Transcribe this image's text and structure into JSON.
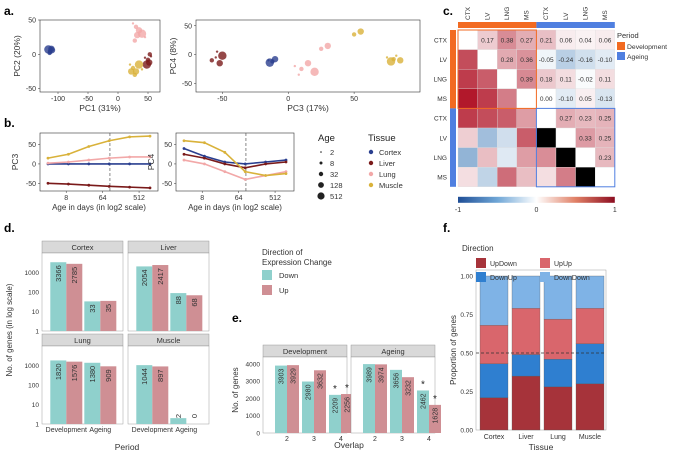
{
  "panels": {
    "a": "a.",
    "b": "b.",
    "c": "c.",
    "d": "d.",
    "e": "e.",
    "f": "f."
  },
  "colors": {
    "cortex": "#2a3f8f",
    "liver": "#7a1a1a",
    "lung": "#f2a8a8",
    "muscle": "#d9b23a",
    "down": "#8fd0cc",
    "up": "#cf8f94",
    "updown": "#a6333a",
    "downup": "#2f7fd0",
    "upup": "#d9666c",
    "downdown": "#7fb3e6",
    "development": "#f26a21",
    "ageing": "#4f7fe0",
    "strip": "#d9d9d9"
  },
  "chart_data": [
    {
      "id": "a1",
      "type": "scatter",
      "xlabel": "PC1 (31%)",
      "ylabel": "PC2 (20%)",
      "xlim": [
        -130,
        70
      ],
      "ylim": [
        -55,
        50
      ],
      "xticks": [
        -100,
        -50,
        0,
        50
      ],
      "yticks": [
        -50,
        0,
        50
      ],
      "series": [
        {
          "name": "Cortex",
          "color": "#2a3f8f",
          "points": [
            [
              -115,
              5
            ],
            [
              -113,
              3
            ],
            [
              -110,
              6
            ],
            [
              -116,
              7
            ],
            [
              -112,
              4
            ],
            [
              -114,
              2
            ],
            [
              -111,
              8
            ]
          ]
        },
        {
          "name": "Liver",
          "color": "#7a1a1a",
          "points": [
            [
              45,
              -5
            ],
            [
              50,
              -8
            ],
            [
              52,
              -12
            ],
            [
              48,
              -15
            ],
            [
              55,
              -3
            ],
            [
              53,
              0
            ]
          ]
        },
        {
          "name": "Lung",
          "color": "#f2a8a8",
          "points": [
            [
              25,
              45
            ],
            [
              30,
              40
            ],
            [
              35,
              35
            ],
            [
              40,
              30
            ],
            [
              45,
              25
            ],
            [
              28,
              20
            ],
            [
              32,
              28
            ]
          ]
        },
        {
          "name": "Muscle",
          "color": "#d9b23a",
          "points": [
            [
              20,
              -15
            ],
            [
              25,
              -20
            ],
            [
              30,
              -25
            ],
            [
              35,
              -15
            ],
            [
              40,
              -22
            ],
            [
              28,
              -30
            ],
            [
              22,
              -25
            ]
          ]
        }
      ]
    },
    {
      "id": "a2",
      "type": "scatter",
      "xlabel": "PC3 (17%)",
      "ylabel": "PC4 (8%)",
      "xlim": [
        -70,
        100
      ],
      "ylim": [
        -65,
        60
      ],
      "xticks": [
        -50,
        0,
        50
      ],
      "yticks": [
        -50,
        0,
        50
      ],
      "series": [
        {
          "name": "Cortex",
          "color": "#2a3f8f",
          "points": [
            [
              -15,
              -10
            ],
            [
              -12,
              -12
            ],
            [
              -10,
              -8
            ],
            [
              -14,
              -14
            ]
          ]
        },
        {
          "name": "Liver",
          "color": "#7a1a1a",
          "points": [
            [
              -55,
              -5
            ],
            [
              -58,
              -10
            ],
            [
              -52,
              -15
            ],
            [
              -50,
              -2
            ],
            [
              -54,
              5
            ]
          ]
        },
        {
          "name": "Lung",
          "color": "#f2a8a8",
          "points": [
            [
              5,
              -20
            ],
            [
              10,
              -25
            ],
            [
              15,
              -15
            ],
            [
              20,
              -30
            ],
            [
              8,
              -35
            ],
            [
              25,
              10
            ],
            [
              30,
              15
            ]
          ]
        },
        {
          "name": "Muscle",
          "color": "#d9b23a",
          "points": [
            [
              75,
              -5
            ],
            [
              80,
              -8
            ],
            [
              85,
              -10
            ],
            [
              78,
              -12
            ],
            [
              82,
              -2
            ],
            [
              50,
              35
            ],
            [
              55,
              40
            ]
          ]
        }
      ]
    },
    {
      "id": "b1",
      "type": "line",
      "xlabel": "Age in days (in log2 scale)",
      "ylabel": "PC3",
      "xticks": [
        "8",
        "64",
        "512"
      ],
      "yticks": [
        "-50",
        "0",
        "50"
      ],
      "vline": 64,
      "series": [
        {
          "name": "Cortex",
          "values": [
            0,
            0,
            0,
            0,
            0,
            0
          ]
        },
        {
          "name": "Liver",
          "values": [
            -50,
            -52,
            -55,
            -58,
            -60,
            -62
          ]
        },
        {
          "name": "Lung",
          "values": [
            2,
            5,
            10,
            15,
            18,
            18
          ]
        },
        {
          "name": "Muscle",
          "values": [
            15,
            25,
            45,
            60,
            70,
            72
          ]
        }
      ]
    },
    {
      "id": "b2",
      "type": "line",
      "xlabel": "Age in days (in log2 scale)",
      "ylabel": "PC4",
      "xticks": [
        "8",
        "64",
        "512"
      ],
      "yticks": [
        "-50",
        "0",
        "50"
      ],
      "vline": 64,
      "series": [
        {
          "name": "Cortex",
          "values": [
            40,
            20,
            5,
            0,
            5,
            10
          ]
        },
        {
          "name": "Liver",
          "values": [
            25,
            15,
            0,
            -10,
            0,
            5
          ]
        },
        {
          "name": "Lung",
          "values": [
            10,
            0,
            -20,
            -40,
            -30,
            -20
          ]
        },
        {
          "name": "Muscle",
          "values": [
            60,
            55,
            30,
            -20,
            -30,
            -25
          ]
        }
      ]
    },
    {
      "id": "c",
      "type": "heatmap",
      "labels": [
        "CTX",
        "LV",
        "LNG",
        "MS",
        "CTX",
        "LV",
        "LNG",
        "MS"
      ],
      "values": [
        [
          null,
          0.17,
          0.38,
          0.27,
          0.21,
          0.06,
          0.04,
          0.06
        ],
        [
          null,
          null,
          0.28,
          0.36,
          -0.05,
          -0.24,
          -0.16,
          -0.1
        ],
        [
          null,
          null,
          null,
          0.39,
          0.18,
          0.11,
          -0.02,
          0.11
        ],
        [
          null,
          null,
          null,
          null,
          0.0,
          -0.1,
          0.05,
          -0.13
        ],
        [
          null,
          null,
          null,
          null,
          null,
          0.27,
          0.23,
          0.25
        ],
        [
          null,
          null,
          null,
          null,
          null,
          null,
          0.33,
          0.25
        ],
        [
          null,
          null,
          null,
          null,
          null,
          null,
          null,
          0.23
        ],
        [
          null,
          null,
          null,
          null,
          null,
          null,
          null,
          null
        ]
      ],
      "lower": [
        [
          0.55
        ],
        [
          0.6,
          0.5
        ],
        [
          0.8,
          0.6,
          0.4
        ],
        [
          0.6,
          0.55,
          0.5,
          0.3
        ],
        [
          0.15,
          -0.3,
          -0.15,
          0.5
        ],
        [
          -0.35,
          0.2,
          -0.1,
          0.3,
          0.35
        ],
        [
          0.1,
          -0.2,
          0.45,
          0.2,
          0.1,
          0.4
        ],
        [
          0.1,
          -0.25,
          -0.1,
          0.6,
          0.3,
          0.25,
          0.35
        ]
      ],
      "colorbar_ticks": [
        "-1",
        "0",
        "1"
      ],
      "legend_title": "Period",
      "legend": [
        "Development",
        "Ageing"
      ]
    },
    {
      "id": "d",
      "type": "bar",
      "ylabel": "No. of genes (in log scale)",
      "xlabel": "Period",
      "categories": [
        "Development",
        "Ageing"
      ],
      "yticks": [
        "1",
        "10",
        "100",
        "1000"
      ],
      "legend_title": "Direction of Expression Change",
      "legend": [
        "Down",
        "Up"
      ],
      "facets": [
        {
          "name": "Cortex",
          "down": [
            3366,
            33
          ],
          "up": [
            2785,
            35
          ]
        },
        {
          "name": "Liver",
          "down": [
            2054,
            88
          ],
          "up": [
            2417,
            68
          ]
        },
        {
          "name": "Lung",
          "down": [
            1820,
            1380
          ],
          "up": [
            1576,
            909
          ]
        },
        {
          "name": "Muscle",
          "down": [
            1044,
            2
          ],
          "up": [
            897,
            0
          ]
        }
      ]
    },
    {
      "id": "e",
      "type": "bar",
      "ylabel": "No. of genes",
      "xlabel": "Overlap",
      "categories": [
        "2",
        "3",
        "4"
      ],
      "yticks": [
        "0",
        "1000",
        "2000",
        "3000",
        "4000"
      ],
      "facets": [
        {
          "name": "Development",
          "down": [
            3903,
            2980,
            2209
          ],
          "up": [
            3929,
            3632,
            2256
          ],
          "star": [
            false,
            false,
            true
          ]
        },
        {
          "name": "Ageing",
          "down": [
            3989,
            3656,
            2462
          ],
          "up": [
            3974,
            3232,
            1628
          ],
          "star": [
            false,
            false,
            true
          ]
        }
      ]
    },
    {
      "id": "f",
      "type": "bar",
      "ylabel": "Proportion of genes",
      "xlabel": "Tissue",
      "categories": [
        "Cortex",
        "Liver",
        "Lung",
        "Muscle"
      ],
      "yticks": [
        "0.00",
        "0.25",
        "0.50",
        "0.75",
        "1.00"
      ],
      "legend_title": "Direction",
      "legend": [
        "UpDown",
        "UpUp",
        "DownUp",
        "DownDown"
      ],
      "stack_order": [
        "UpDown",
        "DownUp",
        "UpUp",
        "DownDown"
      ],
      "series": [
        {
          "name": "UpDown",
          "values": [
            0.21,
            0.35,
            0.28,
            0.3
          ]
        },
        {
          "name": "DownUp",
          "values": [
            0.22,
            0.14,
            0.18,
            0.26
          ]
        },
        {
          "name": "UpUp",
          "values": [
            0.25,
            0.3,
            0.26,
            0.23
          ]
        },
        {
          "name": "DownDown",
          "values": [
            0.32,
            0.21,
            0.28,
            0.21
          ]
        }
      ]
    }
  ],
  "legend_b": {
    "age_title": "Age",
    "ages": [
      "2",
      "8",
      "32",
      "128",
      "512"
    ],
    "tissue_title": "Tissue",
    "tissues": [
      "Cortex",
      "Liver",
      "Lung",
      "Muscle"
    ]
  }
}
